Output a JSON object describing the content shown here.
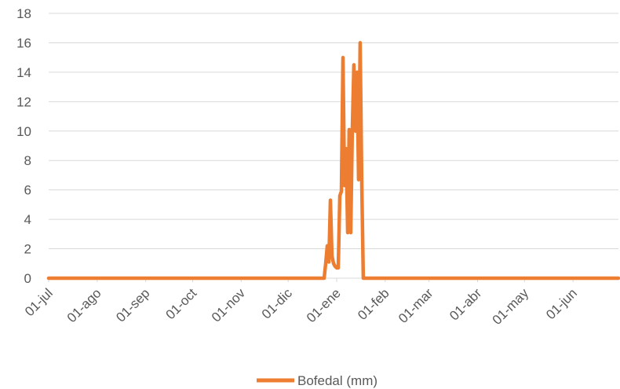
{
  "chart_data": {
    "type": "line",
    "title": "",
    "xlabel": "",
    "ylabel": "",
    "ylim": [
      0,
      18
    ],
    "yticks": [
      0,
      2,
      4,
      6,
      8,
      10,
      12,
      14,
      16,
      18
    ],
    "xlim": [
      "01-jul",
      "30-jun"
    ],
    "xticks": [
      "01-jul",
      "01-ago",
      "01-sep",
      "01-oct",
      "01-nov",
      "01-dic",
      "01-ene",
      "01-feb",
      "01-mar",
      "01-abr",
      "01-may",
      "01-jun"
    ],
    "grid": "horizontal",
    "legend": "bottom",
    "series": [
      {
        "name": "Bofedal (mm)",
        "color": "#ED7D31",
        "points": [
          [
            "01-jul",
            0
          ],
          [
            "24-dic",
            0
          ],
          [
            "25-dic",
            1
          ],
          [
            "26-dic",
            2.2
          ],
          [
            "27-dic",
            1.1
          ],
          [
            "28-dic",
            5.3
          ],
          [
            "29-dic",
            1.5
          ],
          [
            "30-dic",
            1.0
          ],
          [
            "31-dic",
            0.8
          ],
          [
            "01-ene",
            0.7
          ],
          [
            "02-ene",
            0.7
          ],
          [
            "03-ene",
            5.6
          ],
          [
            "04-ene",
            5.9
          ],
          [
            "05-ene",
            15.0
          ],
          [
            "06-ene",
            6.3
          ],
          [
            "07-ene",
            8.8
          ],
          [
            "08-ene",
            3.1
          ],
          [
            "09-ene",
            10.1
          ],
          [
            "10-ene",
            3.1
          ],
          [
            "11-ene",
            10.0
          ],
          [
            "12-ene",
            14.5
          ],
          [
            "13-ene",
            10.0
          ],
          [
            "14-ene",
            14.0
          ],
          [
            "15-ene",
            6.7
          ],
          [
            "16-ene",
            16.0
          ],
          [
            "17-ene",
            6.7
          ],
          [
            "18-ene",
            0
          ],
          [
            "30-jun",
            0
          ]
        ]
      }
    ]
  }
}
